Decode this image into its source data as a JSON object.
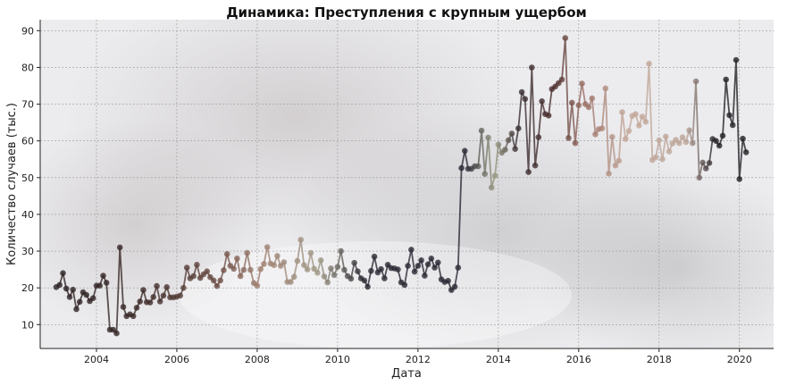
{
  "chart_data": {
    "type": "line",
    "title": "Динамика: Преступления с крупным ущербом",
    "xlabel": "Дата",
    "ylabel": "Количество случаев (тыс.)",
    "xlim": [
      2002.6,
      2020.85
    ],
    "ylim": [
      3.5,
      93
    ],
    "grid": true,
    "x_ticks": [
      "2004",
      "2006",
      "2008",
      "2010",
      "2012",
      "2014",
      "2016",
      "2018",
      "2020"
    ],
    "y_ticks": [
      "10",
      "20",
      "30",
      "40",
      "50",
      "60",
      "70",
      "80",
      "90"
    ],
    "series": [
      {
        "x_start": 2003.0,
        "x_step": 0.08333,
        "values": [
          20.2,
          20.8,
          24.0,
          19.8,
          17.5,
          19.5,
          14.2,
          16.2,
          18.8,
          18.1,
          16.4,
          17.2,
          20.6,
          20.6,
          23.3,
          21.4,
          8.6,
          8.6,
          7.6,
          31.0,
          14.8,
          12.3,
          12.8,
          12.3,
          14.6,
          16.3,
          19.4,
          16.1,
          16.0,
          17.5,
          20.5,
          16.3,
          17.9,
          20.2,
          17.4,
          17.4,
          17.6,
          17.9,
          20.0,
          25.5,
          22.6,
          23.2,
          26.3,
          22.7,
          23.7,
          24.5,
          22.9,
          22.0,
          20.5,
          22.0,
          24.8,
          29.2,
          26.0,
          25.2,
          28.0,
          23.2,
          24.9,
          29.5,
          24.9,
          21.3,
          20.6,
          25.1,
          26.5,
          31.1,
          26.6,
          26.2,
          28.7,
          26.0,
          27.0,
          21.6,
          21.6,
          23.0,
          27.3,
          33.1,
          26.2,
          25.0,
          29.5,
          25.2,
          24.1,
          27.5,
          23.1,
          21.5,
          25.3,
          23.5,
          25.7,
          30.0,
          24.9,
          23.2,
          22.5,
          26.8,
          24.5,
          22.6,
          22.0,
          20.3,
          24.6,
          28.5,
          24.2,
          25.1,
          22.6,
          26.3,
          25.4,
          25.3,
          25.0,
          21.5,
          20.8,
          26.0,
          30.4,
          24.4,
          26.0,
          27.5,
          23.3,
          26.4,
          28.0,
          25.5,
          26.9,
          22.3,
          21.6,
          21.9,
          19.4,
          20.3,
          25.5,
          52.6,
          57.3,
          52.4,
          52.4,
          53.1,
          53.1,
          62.8,
          51.0,
          60.9,
          47.3,
          50.5,
          59.0,
          56.8,
          57.6,
          60.2,
          62.0,
          57.8,
          63.4,
          73.3,
          71.4,
          51.5,
          80.0,
          53.3,
          61.0,
          70.8,
          67.3,
          66.9,
          74.1,
          74.8,
          75.7,
          76.7,
          88.0,
          60.8,
          70.4,
          59.4,
          69.7,
          75.6,
          70.0,
          69.2,
          71.6,
          61.8,
          63.2,
          63.4,
          74.3,
          51.1,
          61.1,
          53.3,
          54.6,
          67.8,
          60.5,
          62.7,
          66.8,
          67.3,
          64.2,
          66.6,
          65.2,
          81.0,
          54.8,
          55.5,
          60.2,
          55.0,
          61.2,
          57.1,
          59.3,
          60.3,
          59.4,
          61.0,
          59.7,
          62.9,
          59.4,
          76.2,
          50.0,
          54.1,
          52.5,
          54.0,
          60.5,
          60.0,
          58.7,
          61.4,
          76.7,
          67.0,
          64.3,
          82.0,
          49.6,
          60.6,
          56.9
        ]
      }
    ]
  }
}
